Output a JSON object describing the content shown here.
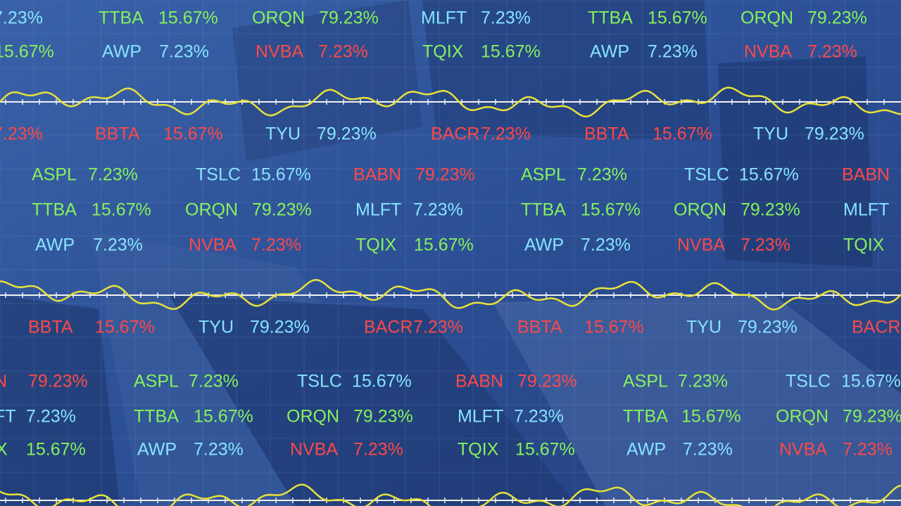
{
  "colors": {
    "green": "#86f25c",
    "cyan": "#86e4ff",
    "red": "#ff4848",
    "wave": "#e8e23a"
  },
  "rows": [
    {
      "items": [
        {
          "value": "7.23%",
          "color": "cyan"
        },
        {
          "symbol": "TTBA",
          "value": "15.67%",
          "color": "green"
        },
        {
          "symbol": "ORQN",
          "value": "79.23%",
          "color": "green"
        },
        {
          "symbol": "MLFT",
          "value": "7.23%",
          "color": "cyan"
        },
        {
          "symbol": "TTBA",
          "value": "15.67%",
          "color": "green"
        },
        {
          "symbol": "ORQN",
          "value": "79.23%",
          "color": "green"
        }
      ]
    },
    {
      "items": [
        {
          "value": "15.67%",
          "color": "green"
        },
        {
          "symbol": "AWP",
          "value": "7.23%",
          "color": "cyan"
        },
        {
          "symbol": "NVBA",
          "value": "7.23%",
          "color": "red"
        },
        {
          "symbol": "TQIX",
          "value": "15.67%",
          "color": "green"
        },
        {
          "symbol": "AWP",
          "value": "7.23%",
          "color": "cyan"
        },
        {
          "symbol": "NVBA",
          "value": "7.23%",
          "color": "red"
        }
      ]
    },
    {
      "items": [
        {
          "value": "7.23%",
          "color": "red"
        },
        {
          "symbol": "BBTA",
          "value": "15.67%",
          "color": "red"
        },
        {
          "symbol": "TYU",
          "value": "79.23%",
          "color": "cyan"
        },
        {
          "symbol": "BACR",
          "value": "7.23%",
          "color": "red"
        },
        {
          "symbol": "BBTA",
          "value": "15.67%",
          "color": "red"
        },
        {
          "symbol": "TYU",
          "value": "79.23%",
          "color": "cyan"
        }
      ]
    },
    {
      "items": [
        {
          "symbol": "ASPL",
          "value": "7.23%",
          "color": "green"
        },
        {
          "symbol": "TSLC",
          "value": "15.67%",
          "color": "cyan"
        },
        {
          "symbol": "BABN",
          "value": "79.23%",
          "color": "red"
        },
        {
          "symbol": "ASPL",
          "value": "7.23%",
          "color": "green"
        },
        {
          "symbol": "TSLC",
          "value": "15.67%",
          "color": "cyan"
        },
        {
          "symbol": "BABN",
          "color": "red"
        }
      ]
    },
    {
      "items": [
        {
          "symbol": "TTBA",
          "value": "15.67%",
          "color": "green"
        },
        {
          "symbol": "ORQN",
          "value": "79.23%",
          "color": "green"
        },
        {
          "symbol": "MLFT",
          "value": "7.23%",
          "color": "cyan"
        },
        {
          "symbol": "TTBA",
          "value": "15.67%",
          "color": "green"
        },
        {
          "symbol": "ORQN",
          "value": "79.23%",
          "color": "green"
        },
        {
          "symbol": "MLFT",
          "color": "cyan"
        }
      ]
    },
    {
      "items": [
        {
          "symbol": "AWP",
          "value": "7.23%",
          "color": "cyan"
        },
        {
          "symbol": "NVBA",
          "value": "7.23%",
          "color": "red"
        },
        {
          "symbol": "TQIX",
          "value": "15.67%",
          "color": "green"
        },
        {
          "symbol": "AWP",
          "value": "7.23%",
          "color": "cyan"
        },
        {
          "symbol": "NVBA",
          "value": "7.23%",
          "color": "red"
        },
        {
          "symbol": "TQIX",
          "color": "green"
        }
      ]
    },
    {
      "items": [
        {
          "symbol": "BBTA",
          "value": "15.67%",
          "color": "red"
        },
        {
          "symbol": "TYU",
          "value": "79.23%",
          "color": "cyan"
        },
        {
          "symbol": "BACR",
          "value": "7.23%",
          "color": "red"
        },
        {
          "symbol": "BBTA",
          "value": "15.67%",
          "color": "red"
        },
        {
          "symbol": "TYU",
          "value": "79.23%",
          "color": "cyan"
        },
        {
          "symbol": "BACR",
          "color": "red"
        }
      ]
    },
    {
      "items": [
        {
          "symbol": "N",
          "value": "79.23%",
          "color": "red"
        },
        {
          "symbol": "ASPL",
          "value": "7.23%",
          "color": "green"
        },
        {
          "symbol": "TSLC",
          "value": "15.67%",
          "color": "cyan"
        },
        {
          "symbol": "BABN",
          "value": "79.23%",
          "color": "red"
        },
        {
          "symbol": "ASPL",
          "value": "7.23%",
          "color": "green"
        },
        {
          "symbol": "TSLC",
          "value": "15.67%",
          "color": "cyan"
        }
      ]
    },
    {
      "items": [
        {
          "symbol": "FT",
          "value": "7.23%",
          "color": "cyan"
        },
        {
          "symbol": "TTBA",
          "value": "15.67%",
          "color": "green"
        },
        {
          "symbol": "ORQN",
          "value": "79.23%",
          "color": "green"
        },
        {
          "symbol": "MLFT",
          "value": "7.23%",
          "color": "cyan"
        },
        {
          "symbol": "TTBA",
          "value": "15.67%",
          "color": "green"
        },
        {
          "symbol": "ORQN",
          "value": "79.23%",
          "color": "green"
        }
      ]
    },
    {
      "items": [
        {
          "symbol": "X",
          "value": "15.67%",
          "color": "green"
        },
        {
          "symbol": "AWP",
          "value": "7.23%",
          "color": "cyan"
        },
        {
          "symbol": "NVBA",
          "value": "7.23%",
          "color": "red"
        },
        {
          "symbol": "TQIX",
          "value": "15.67%",
          "color": "green"
        },
        {
          "symbol": "AWP",
          "value": "7.23%",
          "color": "cyan"
        },
        {
          "symbol": "NVBA",
          "value": "7.23%",
          "color": "red"
        }
      ]
    }
  ]
}
